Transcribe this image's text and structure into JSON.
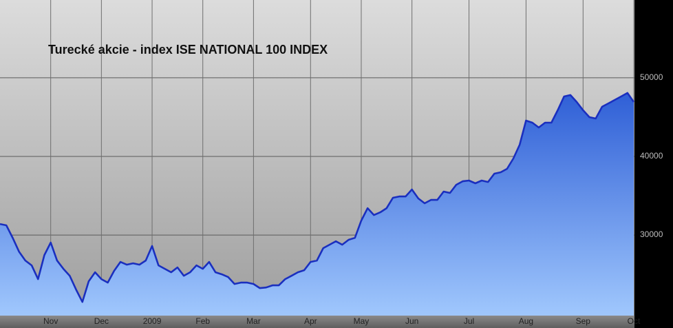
{
  "chart_data": {
    "type": "area",
    "title": "Turecké akcie - index ISE NATIONAL 100 INDEX",
    "categories": [
      null,
      null,
      null,
      null,
      null,
      null,
      null,
      null,
      "Nov",
      null,
      null,
      null,
      null,
      null,
      null,
      null,
      "Dec",
      null,
      null,
      null,
      null,
      null,
      null,
      null,
      "2009",
      null,
      null,
      null,
      null,
      null,
      null,
      null,
      "Feb",
      null,
      null,
      null,
      null,
      null,
      null,
      null,
      "Mar",
      null,
      null,
      null,
      null,
      null,
      null,
      null,
      null,
      "Apr",
      null,
      null,
      null,
      null,
      null,
      null,
      null,
      "May",
      null,
      null,
      null,
      null,
      null,
      null,
      null,
      "Jun",
      null,
      null,
      null,
      null,
      null,
      null,
      null,
      null,
      "Jul",
      null,
      null,
      null,
      null,
      null,
      null,
      null,
      null,
      "Aug",
      null,
      null,
      null,
      null,
      null,
      null,
      null,
      null,
      "Sep",
      null,
      null,
      null,
      null,
      null,
      null,
      null,
      "Oct"
    ],
    "values": [
      31400,
      31230,
      29650,
      27890,
      26750,
      26140,
      24390,
      27460,
      29040,
      26750,
      25700,
      24820,
      23070,
      21490,
      24120,
      25260,
      24390,
      23950,
      25440,
      26580,
      26230,
      26400,
      26230,
      26750,
      28600,
      26140,
      25700,
      25260,
      25880,
      24820,
      25260,
      26140,
      25700,
      26580,
      25260,
      25000,
      24650,
      23770,
      23950,
      23950,
      23770,
      23250,
      23330,
      23600,
      23600,
      24390,
      24820,
      25260,
      25530,
      26580,
      26750,
      28330,
      28770,
      29210,
      28770,
      29390,
      29650,
      31840,
      33420,
      32540,
      32890,
      33420,
      34740,
      34910,
      34910,
      35790,
      34650,
      34040,
      34470,
      34470,
      35530,
      35350,
      36400,
      36840,
      36930,
      36580,
      36930,
      36750,
      37810,
      37980,
      38420,
      39740,
      41490,
      44560,
      44300,
      43680,
      44300,
      44300,
      45880,
      47630,
      47810,
      46930,
      45880,
      45000,
      44820,
      46320,
      46750,
      47190,
      47630,
      48070,
      46930
    ],
    "color": "#1a2fbf",
    "ylim": [
      19750,
      59900
    ],
    "yticks": [
      30000,
      40000,
      50000
    ],
    "grid": true
  }
}
